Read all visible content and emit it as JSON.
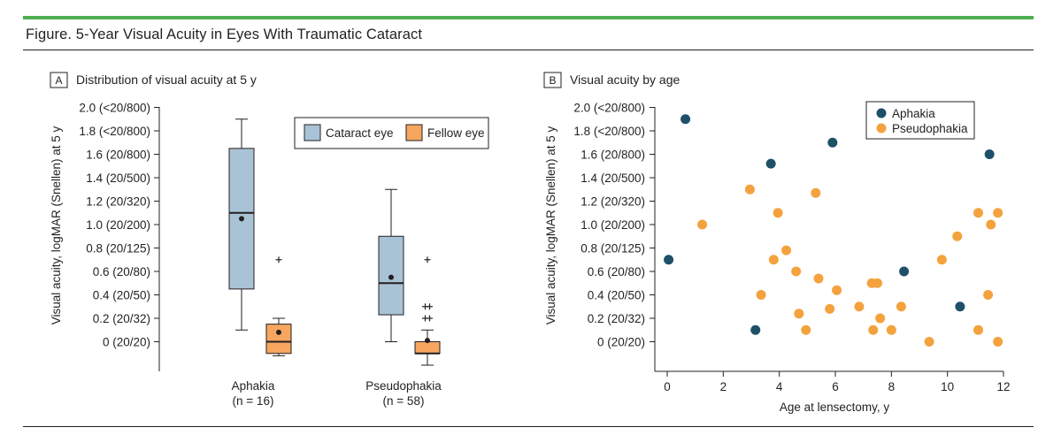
{
  "figure_title": "Figure. 5-Year Visual Acuity in Eyes With Traumatic Cataract",
  "colors": {
    "accent_bar": "#4caf50",
    "cataract_fill": "#a9c3d6",
    "fellow_fill": "#f6a65f",
    "aphakia_dot": "#1e5068",
    "pseudophakia_dot": "#f4a23d",
    "axis": "#231f20"
  },
  "chart_data": [
    {
      "panel_letter": "A",
      "type": "box",
      "title": "Distribution of visual acuity at 5 y",
      "ylabel": "Visual acuity, logMAR (Snellen) at 5 y",
      "ylim": [
        -0.2,
        2.0
      ],
      "y_ticks": [
        {
          "value": 2.0,
          "label": "2.0 (<20/800)"
        },
        {
          "value": 1.8,
          "label": "1.8 (<20/800)"
        },
        {
          "value": 1.6,
          "label": "1.6 (20/800)"
        },
        {
          "value": 1.4,
          "label": "1.4 (20/500)"
        },
        {
          "value": 1.2,
          "label": "1.2 (20/320)"
        },
        {
          "value": 1.0,
          "label": "1.0 (20/200)"
        },
        {
          "value": 0.8,
          "label": "0.8 (20/125)"
        },
        {
          "value": 0.6,
          "label": "0.6 (20/80)"
        },
        {
          "value": 0.4,
          "label": "0.4 (20/50)"
        },
        {
          "value": 0.2,
          "label": "0.2 (20/32)"
        },
        {
          "value": 0.0,
          "label": "0 (20/20)"
        }
      ],
      "legend": [
        {
          "name": "Cataract eye",
          "series": "cataract"
        },
        {
          "name": "Fellow eye",
          "series": "fellow"
        }
      ],
      "groups": [
        {
          "name": "Aphakia",
          "n_label": "(n = 16)",
          "boxes": [
            {
              "series": "cataract",
              "min": 0.1,
              "q1": 0.45,
              "median": 1.1,
              "q3": 1.65,
              "max": 1.9,
              "mean": 1.05,
              "outliers": []
            },
            {
              "series": "fellow",
              "min": -0.12,
              "q1": -0.1,
              "median": 0.0,
              "q3": 0.15,
              "max": 0.2,
              "mean": 0.08,
              "outliers": [
                0.7
              ]
            }
          ]
        },
        {
          "name": "Pseudophakia",
          "n_label": "(n = 58)",
          "boxes": [
            {
              "series": "cataract",
              "min": 0.0,
              "q1": 0.23,
              "median": 0.5,
              "q3": 0.9,
              "max": 1.3,
              "mean": 0.55,
              "outliers": []
            },
            {
              "series": "fellow",
              "min": -0.2,
              "q1": -0.1,
              "median": -0.1,
              "q3": 0.0,
              "max": 0.1,
              "mean": 0.01,
              "outliers": [
                0.7,
                0.3,
                0.3,
                0.2,
                0.2
              ]
            }
          ]
        }
      ]
    },
    {
      "panel_letter": "B",
      "type": "scatter",
      "title": "Visual acuity by age",
      "xlabel": "Age at lensectomy, y",
      "ylabel": "Visual acuity, logMAR (Snellen) at 5 y",
      "xlim": [
        0,
        12
      ],
      "ylim": [
        -0.2,
        2.0
      ],
      "x_ticks": [
        0,
        2,
        4,
        6,
        8,
        10,
        12
      ],
      "y_ticks": [
        {
          "value": 2.0,
          "label": "2.0 (<20/800)"
        },
        {
          "value": 1.8,
          "label": "1.8 (<20/800)"
        },
        {
          "value": 1.6,
          "label": "1.6 (20/800)"
        },
        {
          "value": 1.4,
          "label": "1.4 (20/500)"
        },
        {
          "value": 1.2,
          "label": "1.2 (20/320)"
        },
        {
          "value": 1.0,
          "label": "1.0 (20/200)"
        },
        {
          "value": 0.8,
          "label": "0.8 (20/125)"
        },
        {
          "value": 0.6,
          "label": "0.6 (20/80)"
        },
        {
          "value": 0.4,
          "label": "0.4 (20/50)"
        },
        {
          "value": 0.2,
          "label": "0.2 (20/32)"
        },
        {
          "value": 0.0,
          "label": "0 (20/20)"
        }
      ],
      "series": [
        {
          "name": "Aphakia",
          "color": "#1e5068",
          "points": [
            [
              0.05,
              0.7
            ],
            [
              0.65,
              1.9
            ],
            [
              3.15,
              0.1
            ],
            [
              3.7,
              1.52
            ],
            [
              5.9,
              1.7
            ],
            [
              8.45,
              0.6
            ],
            [
              10.45,
              0.3
            ],
            [
              11.5,
              1.6
            ]
          ]
        },
        {
          "name": "Pseudophakia",
          "color": "#f4a23d",
          "points": [
            [
              1.25,
              1.0
            ],
            [
              2.95,
              1.3
            ],
            [
              3.35,
              0.4
            ],
            [
              3.8,
              0.7
            ],
            [
              3.95,
              1.1
            ],
            [
              4.25,
              0.78
            ],
            [
              4.6,
              0.6
            ],
            [
              4.7,
              0.24
            ],
            [
              4.95,
              0.1
            ],
            [
              5.3,
              1.27
            ],
            [
              5.4,
              0.54
            ],
            [
              5.8,
              0.28
            ],
            [
              6.05,
              0.44
            ],
            [
              6.85,
              0.3
            ],
            [
              7.3,
              0.5
            ],
            [
              7.35,
              0.1
            ],
            [
              7.5,
              0.5
            ],
            [
              7.6,
              0.2
            ],
            [
              8.0,
              0.1
            ],
            [
              8.35,
              0.3
            ],
            [
              9.35,
              0.0
            ],
            [
              9.8,
              0.7
            ],
            [
              10.35,
              0.9
            ],
            [
              11.1,
              1.1
            ],
            [
              11.1,
              0.1
            ],
            [
              11.45,
              0.4
            ],
            [
              11.55,
              1.0
            ],
            [
              11.8,
              1.1
            ],
            [
              11.8,
              0.0
            ]
          ]
        }
      ]
    }
  ]
}
